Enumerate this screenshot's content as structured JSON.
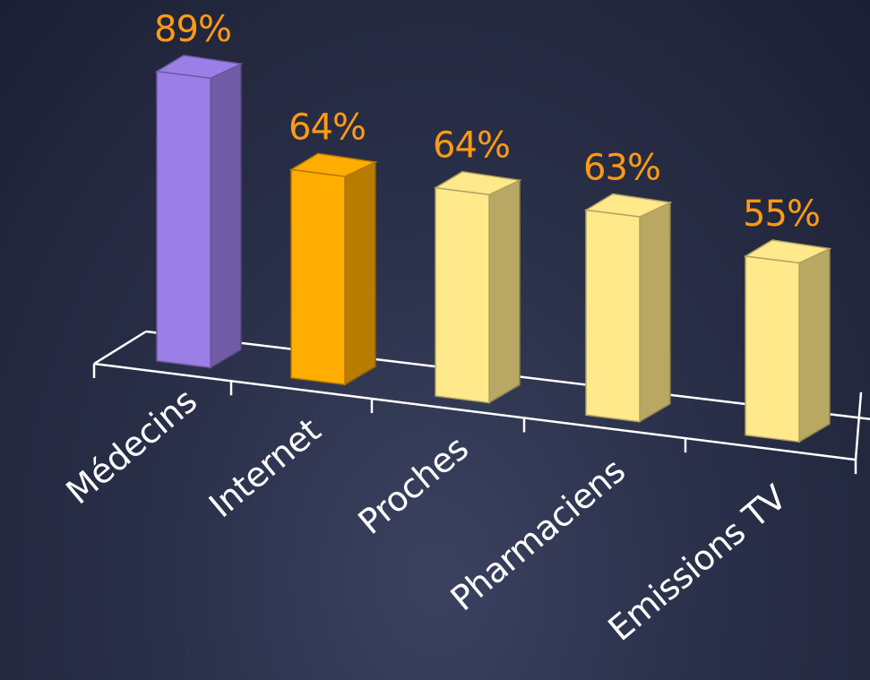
{
  "chart_data": {
    "type": "bar",
    "title": "",
    "xlabel": "",
    "ylabel": "",
    "categories": [
      "Médecins",
      "Internet",
      "Proches",
      "Pharmaciens",
      "Emissions TV"
    ],
    "values": [
      89,
      64,
      64,
      63,
      55
    ],
    "value_labels": [
      "89%",
      "64%",
      "64%",
      "63%",
      "55%"
    ],
    "unit": "%",
    "ylim": [
      0,
      100
    ],
    "grid": false,
    "legend": "none",
    "bar_colors": [
      "#9b7fe6",
      "#ffad00",
      "#ffe98a",
      "#ffe98a",
      "#ffe98a"
    ],
    "label_color": "#ff9a14",
    "axis_color": "#ffffff"
  }
}
